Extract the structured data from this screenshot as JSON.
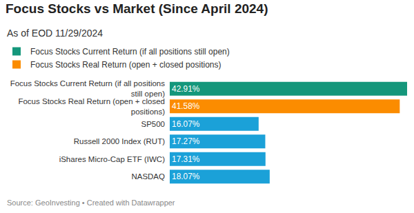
{
  "chart_data": {
    "type": "bar",
    "title": "Focus Stocks vs Market (Since April 2024)",
    "subtitle": "As of EOD 11/29/2024",
    "source": "Source: GeoInvesting • Created with Datawrapper",
    "orientation": "horizontal",
    "categories": [
      "Focus Stocks Current Return (if all positions still open)",
      "Focus Stocks Real Return (open + closed positions)",
      "SP500",
      "Russell 2000 Index (RUT)",
      "iShares Micro-Cap ETF (IWC)",
      "NASDAQ"
    ],
    "series": [
      {
        "name": "Focus Stocks Current Return (if all positions still open)",
        "color": "#15977b",
        "values": [
          42.91,
          null,
          null,
          null,
          null,
          null
        ],
        "value_labels": [
          "42.91%",
          null,
          null,
          null,
          null,
          null
        ]
      },
      {
        "name": "Focus Stocks Real Return (open + closed positions)",
        "color": "#fb8c00",
        "values": [
          null,
          41.58,
          null,
          null,
          null,
          null
        ],
        "value_labels": [
          null,
          "41.58%",
          null,
          null,
          null,
          null
        ]
      },
      {
        "color": "#1ba1d8",
        "values": [
          null,
          null,
          16.07,
          17.27,
          17.31,
          18.07
        ],
        "value_labels": [
          null,
          null,
          "16.07%",
          "17.27%",
          "17.31%",
          "18.07%"
        ]
      }
    ],
    "xlim": [
      0,
      42.91
    ],
    "data_labels": true,
    "tick_labels": "y",
    "grid": false,
    "legend": "top-left"
  }
}
